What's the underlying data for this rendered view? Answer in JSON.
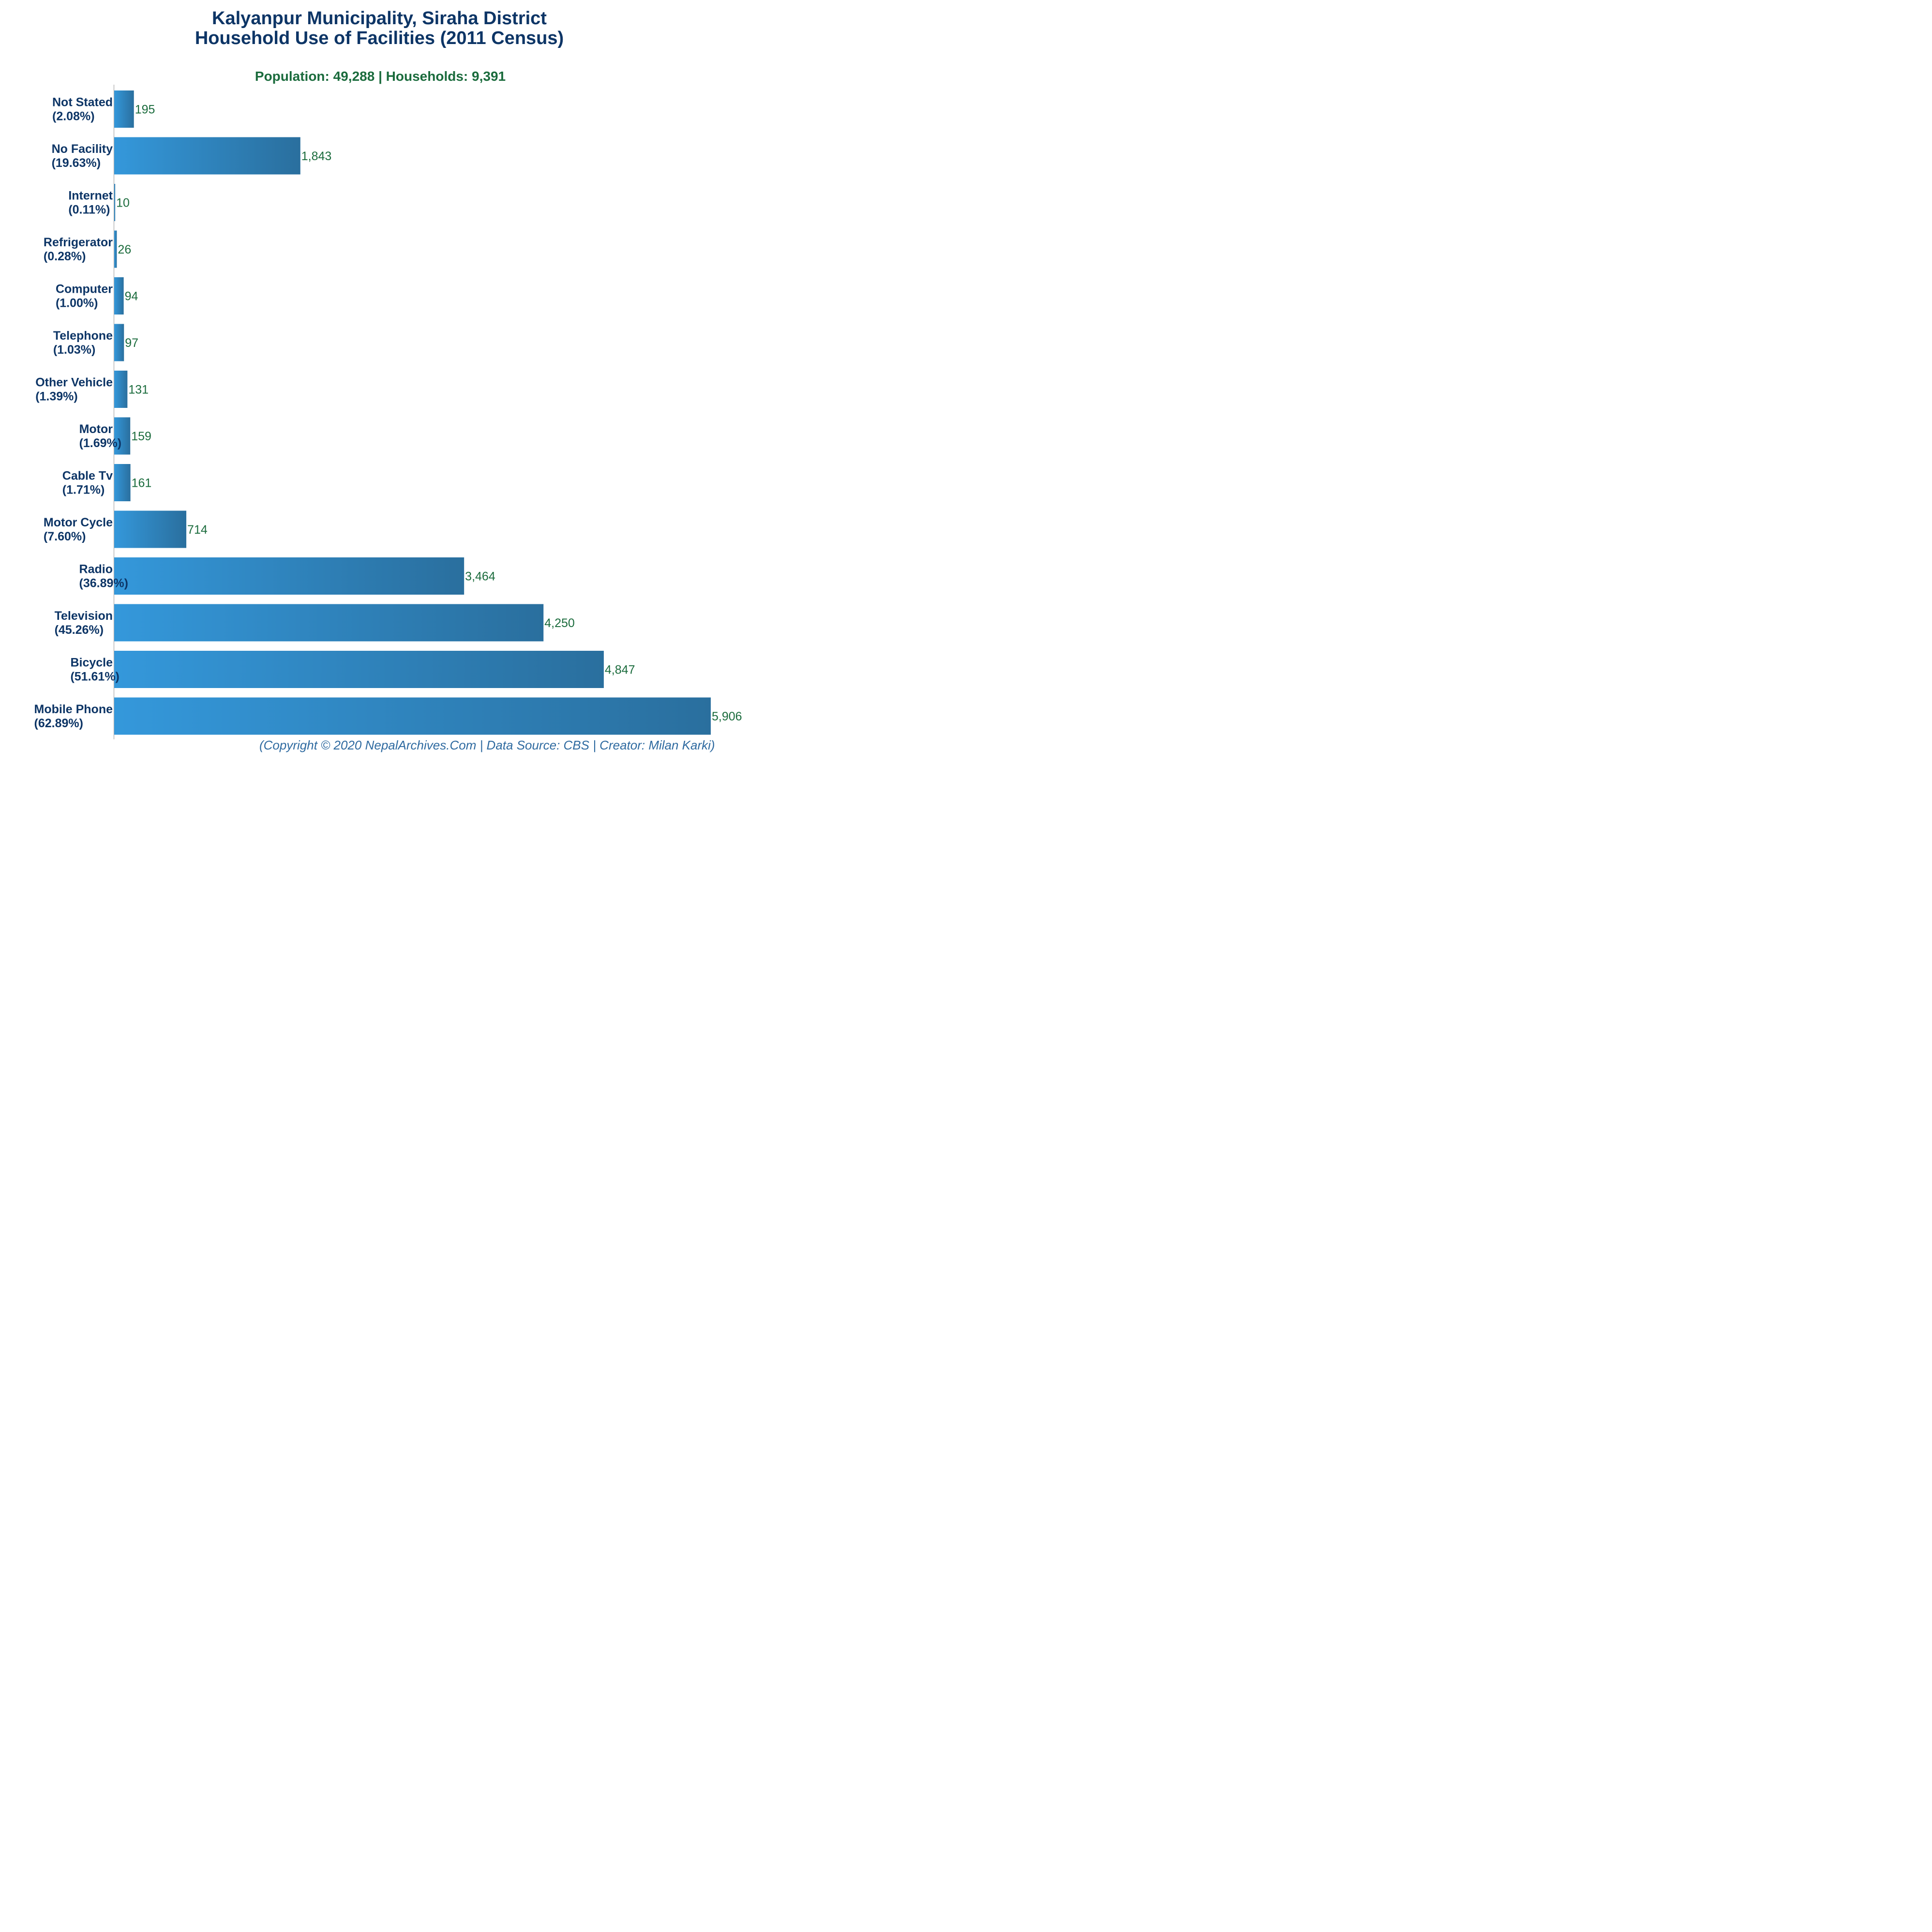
{
  "title_line1": "Kalyanpur Municipality, Siraha District",
  "title_line2": "Household Use of Facilities (2011 Census)",
  "subtitle": "Population: 49,288 | Households: 9,391",
  "footer": "(Copyright © 2020 NepalArchives.Com | Data Source: CBS | Creator: Milan Karki)",
  "colors": {
    "bar_start": "#3498db",
    "bar_end": "#2a6f9e",
    "title": "#0d3566",
    "subtitle": "#1a6b3c",
    "value_label": "#1a6b3c",
    "footer": "#2e6aa0"
  },
  "chart_data": {
    "type": "bar",
    "orientation": "horizontal",
    "categories": [
      "Not Stated",
      "No Facility",
      "Internet",
      "Refrigerator",
      "Computer",
      "Telephone",
      "Other Vehicle",
      "Motor",
      "Cable Tv",
      "Motor Cycle",
      "Radio",
      "Television",
      "Bicycle",
      "Mobile Phone"
    ],
    "percentages": [
      "(2.08%)",
      "(19.63%)",
      "(0.11%)",
      "(0.28%)",
      "(1.00%)",
      "(1.03%)",
      "(1.39%)",
      "(1.69%)",
      "(1.71%)",
      "(7.60%)",
      "(36.89%)",
      "(45.26%)",
      "(51.61%)",
      "(62.89%)"
    ],
    "values": [
      195,
      1843,
      10,
      26,
      94,
      97,
      131,
      159,
      161,
      714,
      3464,
      4250,
      4847,
      5906
    ],
    "value_labels": [
      "195",
      "1,843",
      "10",
      "26",
      "94",
      "97",
      "131",
      "159",
      "161",
      "714",
      "3,464",
      "4,250",
      "4,847",
      "5,906"
    ],
    "xlim": [
      0,
      5906
    ],
    "grid": false,
    "legend": false
  }
}
